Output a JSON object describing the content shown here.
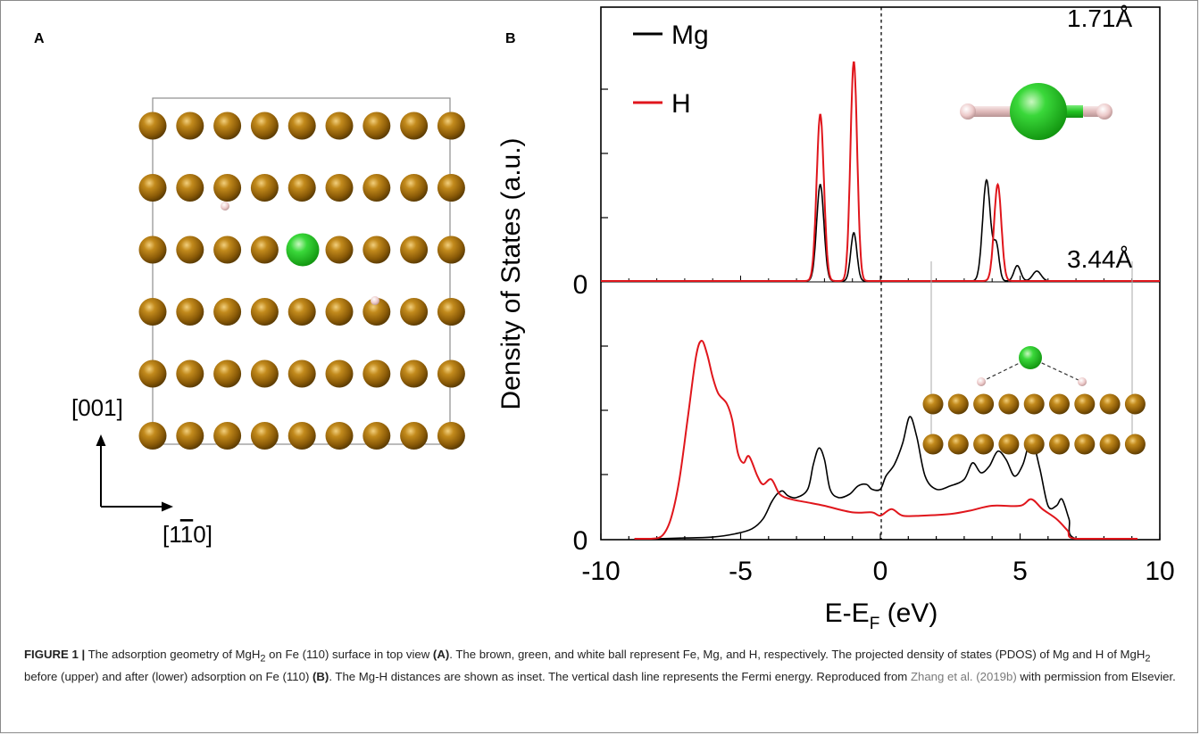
{
  "panel_a": {
    "label": "A",
    "axis_vertical": "[001]",
    "axis_horizontal": "[1",
    "axis_horizontal_bar": "1",
    "axis_horizontal_end": "0]",
    "atom_grid": {
      "rows": 6,
      "columns": 9
    },
    "colors": {
      "fe": "#a66f0c",
      "mg": "#22c322",
      "h": "#e8c8c8"
    }
  },
  "panel_b": {
    "label": "B",
    "inset_upper_distance": "1.71Å",
    "inset_lower_distance": "3.44Å",
    "chart_data": {
      "type": "line",
      "xlabel_main": "E-E",
      "xlabel_sub": "F",
      "xlabel_unit": " (eV)",
      "ylabel": "Density of States (a.u.)",
      "xlim": [
        -10,
        10
      ],
      "x_ticks": [
        -10,
        -5,
        0,
        5,
        10
      ],
      "y_tick_upper": "0",
      "y_tick_lower": "0",
      "fermi_line_x": 0,
      "legend": [
        {
          "name": "Mg",
          "color": "#000000"
        },
        {
          "name": "H",
          "color": "#e0161c"
        }
      ],
      "upper_panel": {
        "ylim": [
          0,
          1.0
        ],
        "peaks_mg": [
          {
            "e": -2.15,
            "h": 0.44,
            "w": 0.13
          },
          {
            "e": -0.95,
            "h": 0.22,
            "w": 0.11
          },
          {
            "e": 3.8,
            "h": 0.46,
            "w": 0.14
          },
          {
            "e": 4.15,
            "h": 0.16,
            "w": 0.1
          },
          {
            "e": 4.9,
            "h": 0.07,
            "w": 0.12
          },
          {
            "e": 5.6,
            "h": 0.045,
            "w": 0.15
          }
        ],
        "peaks_h": [
          {
            "e": -2.15,
            "h": 0.76,
            "w": 0.13
          },
          {
            "e": -0.95,
            "h": 1.0,
            "w": 0.12
          },
          {
            "e": 4.2,
            "h": 0.44,
            "w": 0.13
          }
        ]
      },
      "lower_panel": {
        "ylim": [
          0,
          1.0
        ],
        "mg_points": [
          [
            -8.8,
            0
          ],
          [
            -8,
            0
          ],
          [
            -7,
            0.005
          ],
          [
            -6,
            0.01
          ],
          [
            -5.2,
            0.03
          ],
          [
            -4.6,
            0.06
          ],
          [
            -4.2,
            0.12
          ],
          [
            -3.9,
            0.22
          ],
          [
            -3.7,
            0.27
          ],
          [
            -3.5,
            0.29
          ],
          [
            -3.3,
            0.26
          ],
          [
            -3,
            0.25
          ],
          [
            -2.6,
            0.3
          ],
          [
            -2.4,
            0.45
          ],
          [
            -2.2,
            0.55
          ],
          [
            -2,
            0.48
          ],
          [
            -1.8,
            0.3
          ],
          [
            -1.5,
            0.25
          ],
          [
            -1.1,
            0.27
          ],
          [
            -0.8,
            0.32
          ],
          [
            -0.5,
            0.33
          ],
          [
            -0.3,
            0.3
          ],
          [
            0,
            0.3
          ],
          [
            0.2,
            0.38
          ],
          [
            0.5,
            0.45
          ],
          [
            0.8,
            0.58
          ],
          [
            1.05,
            0.74
          ],
          [
            1.3,
            0.62
          ],
          [
            1.6,
            0.38
          ],
          [
            2,
            0.3
          ],
          [
            2.5,
            0.32
          ],
          [
            3,
            0.36
          ],
          [
            3.3,
            0.46
          ],
          [
            3.6,
            0.4
          ],
          [
            3.9,
            0.44
          ],
          [
            4.2,
            0.53
          ],
          [
            4.5,
            0.48
          ],
          [
            4.8,
            0.38
          ],
          [
            5.1,
            0.45
          ],
          [
            5.4,
            0.6
          ],
          [
            5.7,
            0.43
          ],
          [
            6,
            0.2
          ],
          [
            6.3,
            0.2
          ],
          [
            6.5,
            0.24
          ],
          [
            6.75,
            0.12
          ],
          [
            7,
            0
          ],
          [
            9.2,
            0
          ]
        ],
        "h_points": [
          [
            -8.8,
            0
          ],
          [
            -8.2,
            0
          ],
          [
            -7.8,
            0.02
          ],
          [
            -7.5,
            0.12
          ],
          [
            -7.2,
            0.35
          ],
          [
            -6.9,
            0.72
          ],
          [
            -6.6,
            1.1
          ],
          [
            -6.4,
            1.2
          ],
          [
            -6.2,
            1.12
          ],
          [
            -6,
            0.98
          ],
          [
            -5.8,
            0.88
          ],
          [
            -5.5,
            0.82
          ],
          [
            -5.3,
            0.72
          ],
          [
            -5.1,
            0.52
          ],
          [
            -4.9,
            0.46
          ],
          [
            -4.7,
            0.5
          ],
          [
            -4.4,
            0.38
          ],
          [
            -4.2,
            0.33
          ],
          [
            -3.9,
            0.36
          ],
          [
            -3.6,
            0.27
          ],
          [
            -3.2,
            0.24
          ],
          [
            -2.6,
            0.22
          ],
          [
            -2,
            0.2
          ],
          [
            -1,
            0.16
          ],
          [
            -0.3,
            0.16
          ],
          [
            0,
            0.14
          ],
          [
            0.4,
            0.18
          ],
          [
            0.8,
            0.14
          ],
          [
            1.5,
            0.14
          ],
          [
            2.5,
            0.15
          ],
          [
            3.2,
            0.17
          ],
          [
            4,
            0.2
          ],
          [
            5,
            0.2
          ],
          [
            5.4,
            0.24
          ],
          [
            5.8,
            0.18
          ],
          [
            6.3,
            0.12
          ],
          [
            6.7,
            0.05
          ],
          [
            7,
            0
          ],
          [
            9.2,
            0
          ]
        ]
      }
    }
  },
  "caption": {
    "figure_label": "FIGURE 1 |",
    "seg1": " The adsorption geometry of MgH",
    "sub2": "2",
    "seg2": " on Fe (110) surface in top view ",
    "ref_a": "(A)",
    "seg3": ". The brown, green, and white ball represent Fe, Mg, and H, respectively. The projected density of states (PDOS) of Mg and H of MgH",
    "sub2b": "2",
    "seg4": " before (upper) and after (lower) adsorption on Fe (110) ",
    "ref_b": "(B)",
    "seg5": ". The Mg-H distances are shown as inset. The vertical dash line represents the Fermi energy. Reproduced from ",
    "citation": "Zhang et al. (2019b)",
    "seg6": " with permission from Elsevier."
  }
}
